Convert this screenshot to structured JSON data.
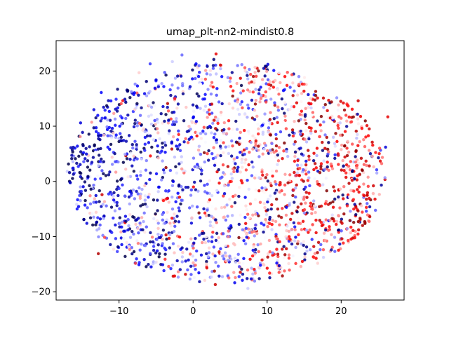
{
  "chart_data": {
    "type": "scatter",
    "title": "umap_plt-nn2-mindist0.8",
    "xlabel": "",
    "ylabel": "",
    "xlim": [
      -18.5,
      28.5
    ],
    "ylim": [
      -21.5,
      25.5
    ],
    "xticks": [
      -10,
      0,
      10,
      20
    ],
    "yticks": [
      -20,
      -10,
      0,
      10,
      20
    ],
    "xtick_labels": [
      "−10",
      "0",
      "10",
      "20"
    ],
    "ytick_labels": [
      "−20",
      "−10",
      "0",
      "10",
      "20"
    ],
    "grid": false,
    "colormap": "seismic",
    "colors": {
      "low": "#00004c",
      "blue": "#0000ff",
      "mid": "#ffffff",
      "red": "#ff0000"
    },
    "n_points_approx": 2000,
    "points": [
      [
        -16.5,
        6.1,
        0.15
      ],
      [
        -15.2,
        10.6,
        0.2
      ],
      [
        -14.8,
        5.2,
        0.25
      ],
      [
        -16.2,
        2.4,
        0.2
      ],
      [
        -16.6,
        -0.2,
        0.15
      ],
      [
        -15.1,
        -1.8,
        0.3
      ],
      [
        -14.6,
        -4.3,
        0.25
      ],
      [
        -13.4,
        13.0,
        0.2
      ],
      [
        -12.4,
        16.1,
        0.25
      ],
      [
        -12.8,
        8.7,
        0.3
      ],
      [
        -12.3,
        -2.4,
        0.85
      ],
      [
        -12.8,
        -13.1,
        0.9
      ],
      [
        -13.1,
        -5.6,
        0.55
      ],
      [
        -11.2,
        -9.0,
        0.2
      ],
      [
        -10.2,
        16.7,
        0.05
      ],
      [
        -9.6,
        11.5,
        0.25
      ],
      [
        -8.5,
        4.0,
        0.15
      ],
      [
        -10.0,
        -1.3,
        0.3
      ],
      [
        -8.8,
        -8.8,
        0.2
      ],
      [
        -7.3,
        19.7,
        0.55
      ],
      [
        -5.8,
        21.3,
        0.3
      ],
      [
        -5.0,
        18.4,
        0.2
      ],
      [
        -4.1,
        -15.1,
        0.2
      ],
      [
        -2.8,
        21.7,
        0.45
      ],
      [
        -1.5,
        22.9,
        0.35
      ],
      [
        0.4,
        21.3,
        0.25
      ],
      [
        1.7,
        20.1,
        0.6
      ],
      [
        2.8,
        22.1,
        0.05
      ],
      [
        3.1,
        23.1,
        0.8
      ],
      [
        3.0,
        -18.7,
        0.85
      ],
      [
        5.5,
        -16.5,
        0.6
      ],
      [
        7.4,
        -19.4,
        0.45
      ],
      [
        10.1,
        21.2,
        0.2
      ],
      [
        10.9,
        20.1,
        0.25
      ],
      [
        12.4,
        19.0,
        0.75
      ],
      [
        14.3,
        17.6,
        0.65
      ],
      [
        15.9,
        15.0,
        0.55
      ],
      [
        17.6,
        15.1,
        0.85
      ],
      [
        20.3,
        14.2,
        0.8
      ],
      [
        22.3,
        14.6,
        0.85
      ],
      [
        21.4,
        10.8,
        0.7
      ],
      [
        22.8,
        9.6,
        0.75
      ],
      [
        24.2,
        7.1,
        0.85
      ],
      [
        26.3,
        11.7,
        0.8
      ],
      [
        26.0,
        6.2,
        0.2
      ],
      [
        23.8,
        2.8,
        0.85
      ],
      [
        24.8,
        2.1,
        0.3
      ],
      [
        22.2,
        1.0,
        0.75
      ],
      [
        23.1,
        -2.6,
        0.8
      ],
      [
        22.0,
        -4.7,
        0.85
      ],
      [
        23.4,
        -5.4,
        0.3
      ],
      [
        20.1,
        -10.4,
        0.85
      ],
      [
        18.4,
        -8.2,
        0.75
      ],
      [
        16.3,
        -11.8,
        0.85
      ],
      [
        15.1,
        -13.7,
        0.55
      ],
      [
        16.8,
        -12.9,
        0.9
      ],
      [
        12.6,
        -12.2,
        0.85
      ],
      [
        10.3,
        -10.7,
        0.6
      ],
      [
        9.1,
        -15.2,
        0.25
      ],
      [
        11.3,
        -14.8,
        0.25
      ]
    ]
  }
}
